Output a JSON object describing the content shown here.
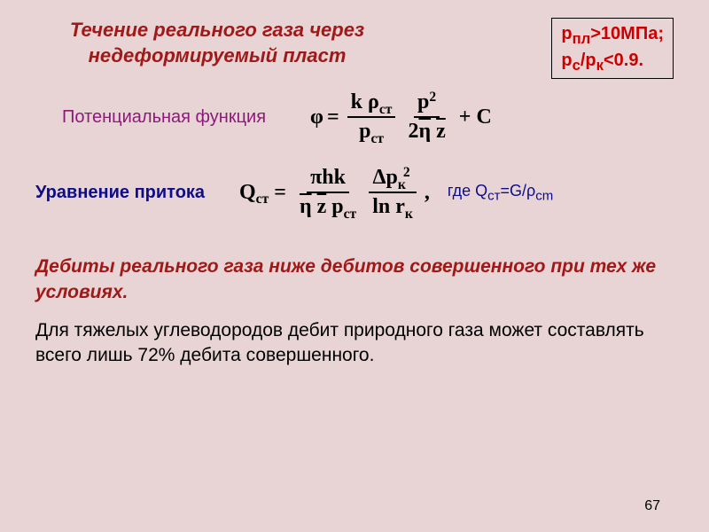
{
  "title": "Течение реального газа через недеформируемый пласт",
  "conditions": {
    "line1_html": "p<sub>пл</sub>&gt;10МПа;",
    "line2_html": "p<sub>с</sub>/p<sub>к</sub>&lt;0.9."
  },
  "potential_label": "Потенциальная функция",
  "formula1": {
    "phi": "φ",
    "eq": "=",
    "frac1_num": "k ρ<span class='sub'>ст</span>",
    "frac1_den": "p<span class='sub'>ст</span>",
    "frac2_num": "p<span class='sup'>2</span>",
    "frac2_den": "2<span style='text-decoration:overline;'>η</span> <span style='text-decoration:overline;'>z</span>",
    "tail": "+ C"
  },
  "inflow_label": "Уравнение притока",
  "formula2": {
    "Q": "Q<span class='sub'>ст</span>",
    "eq": "=",
    "frac1_num": "πhk",
    "frac1_den": "<span style='text-decoration:overline;'>η</span> <span style='text-decoration:overline;'>z</span> p<span class='sub'>ст</span>",
    "frac2_num": "Δp<span class='sub'>к</span><span class='sup' style='left:-3px;'>2</span>",
    "frac2_den": "ln r<span class='sub'>к</span>",
    "tail": ","
  },
  "where_html": "где Q<sub>ст</sub>=G/ρ<sub>cm</sub>",
  "conclusion1": "Дебиты реального газа ниже дебитов совершенного при тех же условиях.",
  "conclusion2": " Для тяжелых углеводородов дебит природного газа может составлять всего лишь 72% дебита совершенного.",
  "page_number": "67",
  "colors": {
    "background": "#e8d4d4",
    "title_red": "#a01818",
    "cond_red": "#cc0000",
    "purple": "#8b1a7a",
    "blue": "#0d0d8c",
    "black": "#000000"
  },
  "fonts": {
    "title_size": 22,
    "body_size": 21,
    "label_size": 20,
    "formula_size": 24
  }
}
